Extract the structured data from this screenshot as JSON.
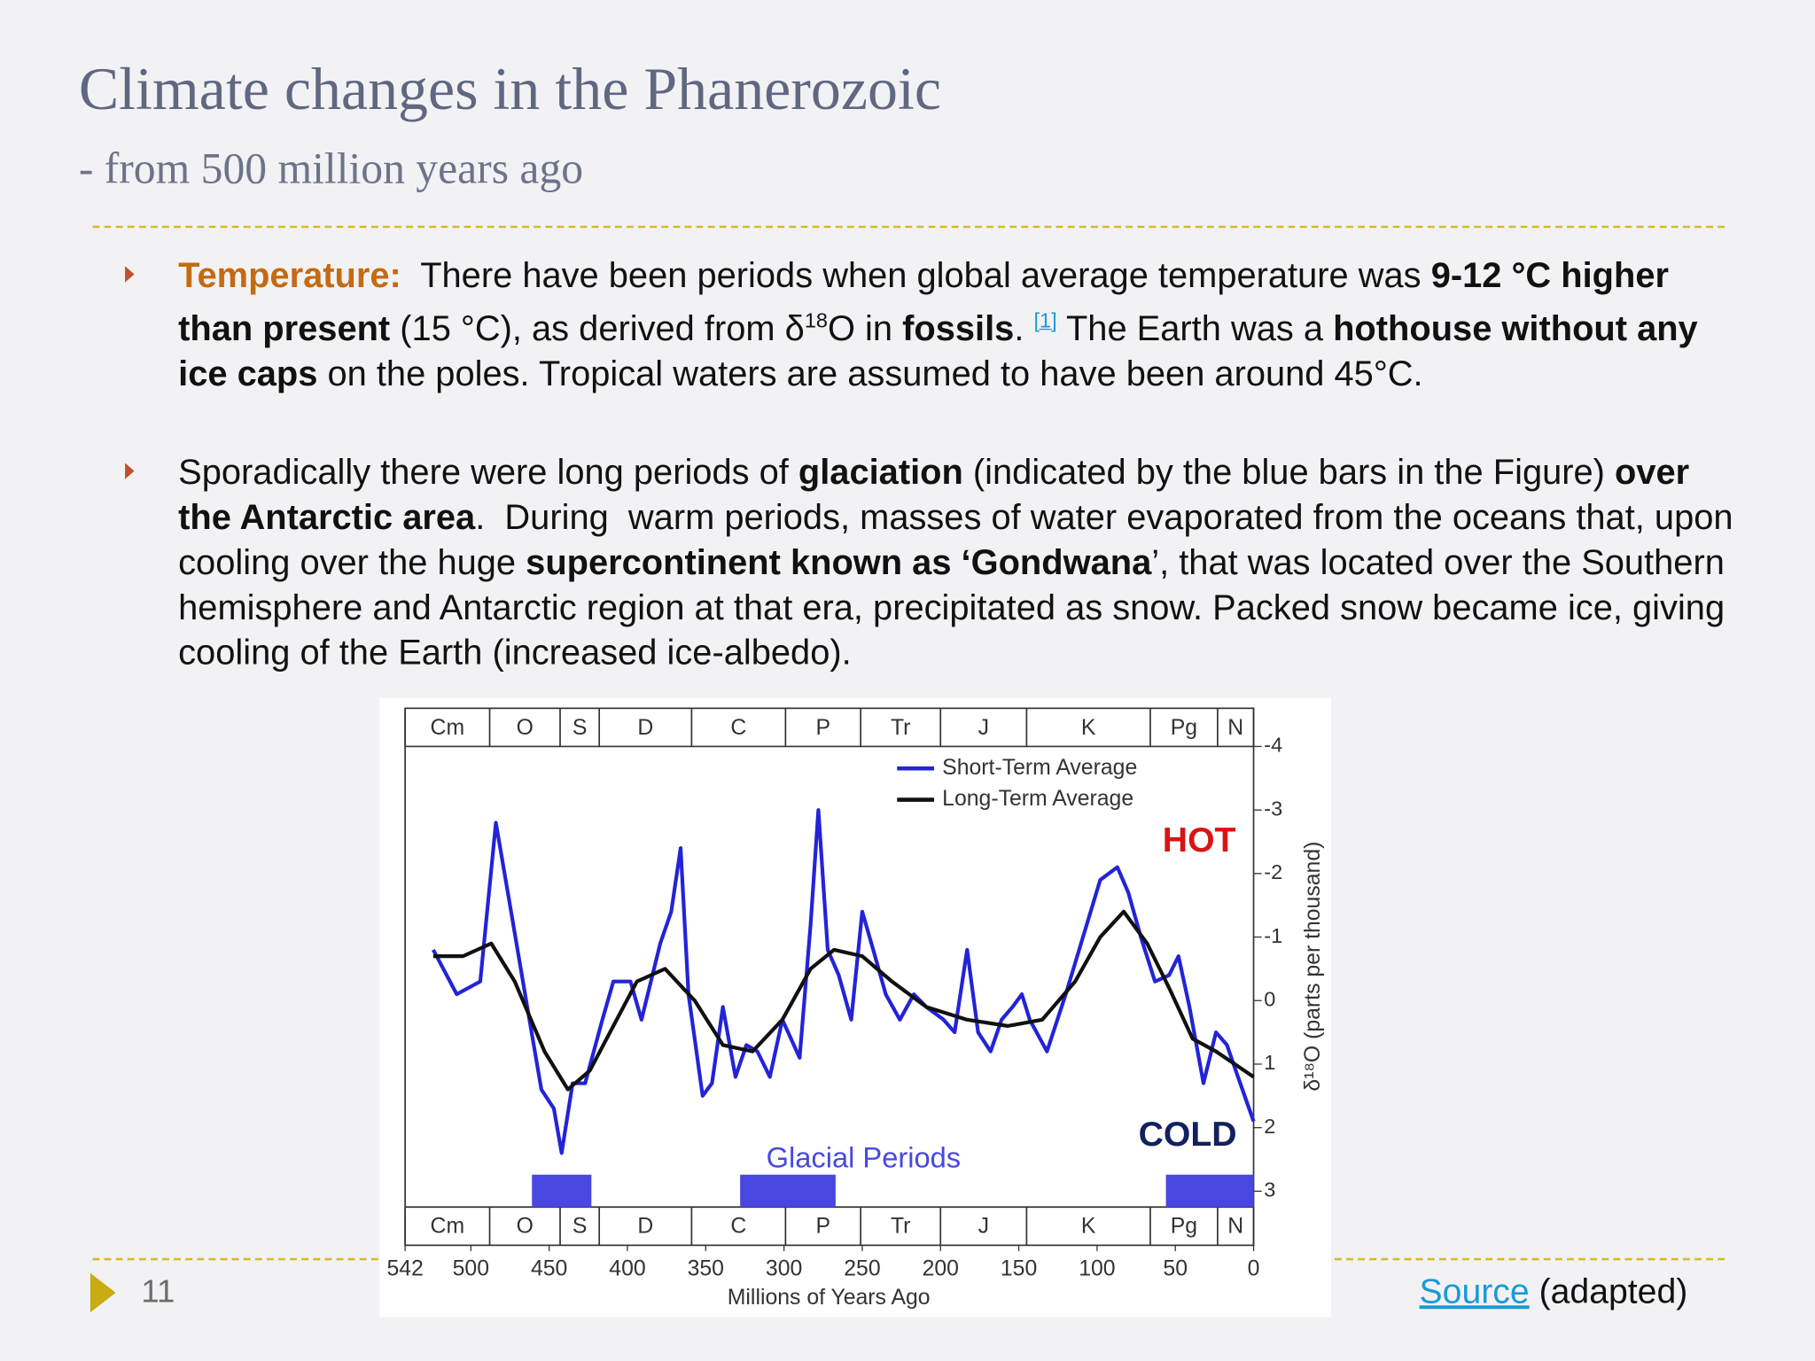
{
  "header": {
    "title": "Climate changes in the Phanerozoic",
    "subtitle": "- from 500 million years ago"
  },
  "bullets": [
    [
      "Temperature:",
      "  There have been periods when global average temperature was ",
      "9-12 °C higher than present",
      " (15 °C), as derived from δ",
      "18",
      "O in ",
      "fossils",
      ". ",
      "[1]",
      " The Earth was a ",
      "hothouse without any ice caps",
      " on the poles. Tropical waters are assumed to have been around 45°C."
    ],
    [
      "Sporadically there were long periods of ",
      "glaciation",
      " (indicated by the blue bars in the Figure) ",
      "over the Antarctic area",
      ".  During  warm periods, masses of water evaporated from the oceans that, upon cooling over the huge ",
      "supercontinent known as ‘Gondwana",
      "’, that was located over the Southern hemisphere and Antarctic region at that era, precipitated as snow. Packed snow became ice, giving cooling of the Earth (increased ice-albedo)."
    ]
  ],
  "footer": {
    "page": "11",
    "source_link": "Source",
    "source_note": " (adapted)"
  },
  "chart_data": {
    "type": "line",
    "x_label": "Millions of Years Ago",
    "y_label": "δ¹⁸O (parts per thousand)",
    "xlim": [
      542,
      0
    ],
    "xticks": [
      542,
      500,
      450,
      400,
      350,
      300,
      250,
      200,
      150,
      100,
      50,
      0
    ],
    "ylim": [
      3.25,
      -4
    ],
    "yticks": [
      -4,
      -3,
      -2,
      -1,
      0,
      1,
      2,
      3
    ],
    "periods": [
      "Cm",
      "O",
      "S",
      "D",
      "C",
      "P",
      "Tr",
      "J",
      "K",
      "Pg",
      "N"
    ],
    "period_bounds": [
      542,
      488,
      443,
      418,
      359,
      299,
      251,
      200,
      145,
      66,
      23,
      0
    ],
    "glacial_label": "Glacial Periods",
    "glacial_color": "#4848e0",
    "glacial_periods": [
      {
        "start": 461,
        "end": 423
      },
      {
        "start": 328,
        "end": 267
      },
      {
        "start": 56,
        "end": 0
      }
    ],
    "hot_label": "HOT",
    "cold_label": "COLD",
    "series": [
      {
        "name": "Short-Term Average",
        "color": "#2323d8",
        "x": [
          524,
          509,
          494,
          484,
          475,
          464,
          455,
          447,
          442,
          435,
          427,
          416,
          409,
          398,
          391,
          379,
          372,
          366,
          361,
          352,
          346,
          339,
          331,
          324,
          317,
          309,
          301,
          290,
          283,
          278,
          272,
          265,
          257,
          250,
          243,
          235,
          226,
          217,
          209,
          198,
          191,
          183,
          176,
          168,
          161,
          154,
          148,
          143,
          132,
          120,
          109,
          98,
          87,
          80,
          72,
          63,
          54,
          48,
          41,
          32,
          24,
          17,
          10,
          0
        ],
        "values": [
          -0.8,
          -0.1,
          -0.3,
          -2.8,
          -1.5,
          0.1,
          1.4,
          1.7,
          2.4,
          1.3,
          1.3,
          0.3,
          -0.3,
          -0.3,
          0.3,
          -0.9,
          -1.4,
          -2.4,
          -0.1,
          1.5,
          1.3,
          0.1,
          1.2,
          0.7,
          0.8,
          1.2,
          0.3,
          0.9,
          -1.2,
          -3.0,
          -0.8,
          -0.4,
          0.3,
          -1.4,
          -0.8,
          -0.1,
          0.3,
          -0.1,
          0.1,
          0.3,
          0.5,
          -0.8,
          0.5,
          0.8,
          0.3,
          0.1,
          -0.1,
          0.3,
          0.8,
          -0.1,
          -1.0,
          -1.9,
          -2.1,
          -1.7,
          -1.0,
          -0.3,
          -0.4,
          -0.7,
          0.1,
          1.3,
          0.5,
          0.7,
          1.2,
          1.9
        ]
      },
      {
        "name": "Long-Term Average",
        "color": "#111111",
        "x": [
          524,
          505,
          487,
          472,
          453,
          438,
          424,
          409,
          394,
          376,
          357,
          339,
          320,
          301,
          283,
          268,
          250,
          231,
          209,
          183,
          157,
          135,
          114,
          98,
          83,
          68,
          54,
          39,
          24,
          0
        ],
        "values": [
          -0.7,
          -0.7,
          -0.9,
          -0.3,
          0.8,
          1.4,
          1.1,
          0.4,
          -0.3,
          -0.5,
          0.0,
          0.7,
          0.8,
          0.3,
          -0.5,
          -0.8,
          -0.7,
          -0.3,
          0.1,
          0.3,
          0.4,
          0.3,
          -0.3,
          -1.0,
          -1.4,
          -0.9,
          -0.2,
          0.6,
          0.8,
          1.2
        ]
      }
    ]
  }
}
